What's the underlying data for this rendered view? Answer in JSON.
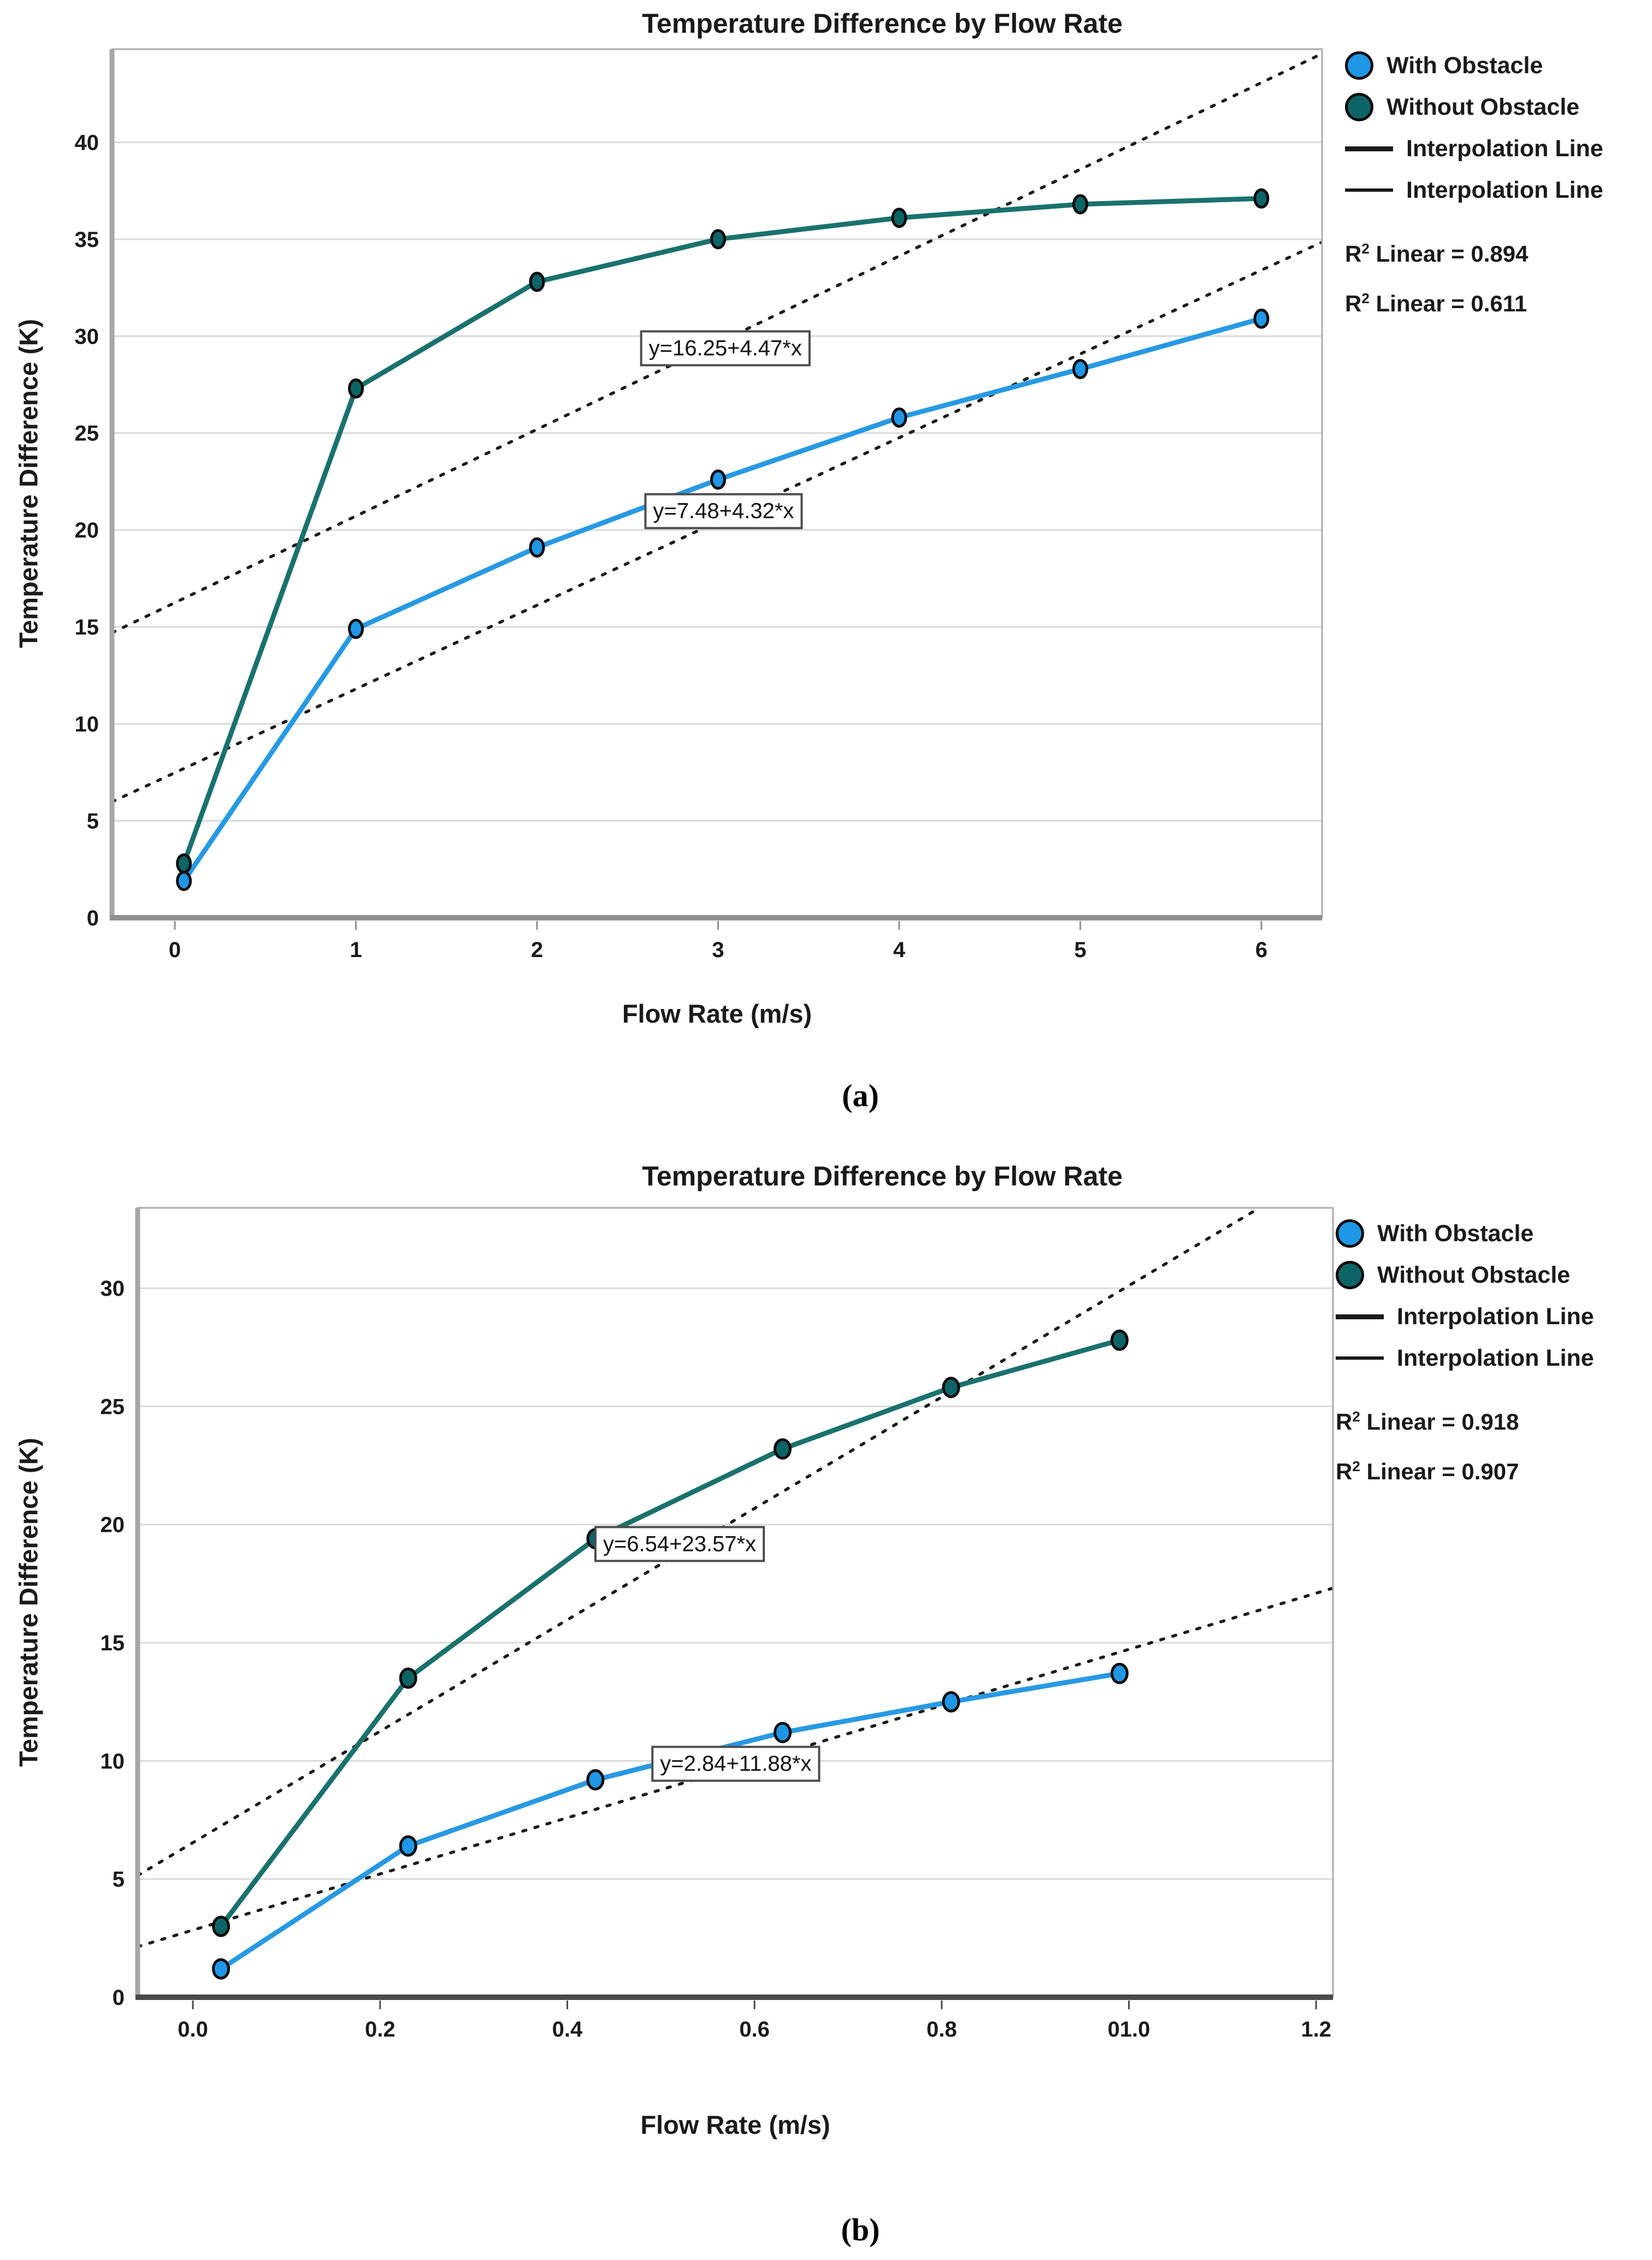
{
  "page": {
    "caption_a": "(a)",
    "caption_b": "(b)"
  },
  "chart_data": [
    {
      "id": "a",
      "type": "line",
      "title": "Temperature Difference by Flow Rate",
      "xlabel": "Flow Rate (m/s)",
      "ylabel": "Temperature Difference (K)",
      "x_ticks": [
        "0",
        "1",
        "2",
        "3",
        "4",
        "5",
        "6"
      ],
      "x_tick_values": [
        0,
        1,
        2,
        3,
        4,
        5,
        6
      ],
      "y_ticks": [
        "0",
        "5",
        "10",
        "15",
        "20",
        "25",
        "30",
        "35",
        "40"
      ],
      "y_tick_values": [
        0,
        5,
        10,
        15,
        20,
        25,
        30,
        35,
        40
      ],
      "xlim": [
        -0.347,
        6.335
      ],
      "ylim": [
        0,
        44.8
      ],
      "grid": "horizontal",
      "legend_position": "top-right",
      "series": [
        {
          "name": "With Obstacle",
          "color": "#2799E4",
          "marker_fill": "#1E97E6",
          "x": [
            0.05,
            1,
            2,
            3,
            4,
            5,
            6
          ],
          "y": [
            1.9,
            14.9,
            19.1,
            22.6,
            25.8,
            28.3,
            30.9
          ]
        },
        {
          "name": "Without Obstacle",
          "color": "#19716D",
          "marker_fill": "#0D6466",
          "x": [
            0.05,
            1,
            2,
            3,
            4,
            5,
            6
          ],
          "y": [
            2.8,
            27.3,
            32.8,
            35.0,
            36.1,
            36.8,
            37.1
          ]
        }
      ],
      "fit_lines": [
        {
          "equation": "y=16.25+4.47*x",
          "intercept": 16.25,
          "slope": 4.47,
          "r2": 0.611,
          "label_center": {
            "x": 3.04,
            "y": 29.4
          }
        },
        {
          "equation": "y=7.48+4.32*x",
          "intercept": 7.48,
          "slope": 4.32,
          "r2": 0.894,
          "label_center": {
            "x": 3.03,
            "y": 21.0
          }
        }
      ],
      "legend_items": [
        "With Obstacle",
        "Without Obstacle",
        "Interpolation Line",
        "Interpolation Line"
      ],
      "r2": [
        {
          "prefix": "R",
          "sup": "2",
          "text": " Linear = 0.894"
        },
        {
          "prefix": "R",
          "sup": "2",
          "text": " Linear = 0.611"
        }
      ],
      "axis_color": "#8F8F8F"
    },
    {
      "id": "b",
      "type": "line",
      "title": "Temperature Difference by Flow Rate",
      "xlabel": "Flow Rate (m/s)",
      "ylabel": "Temperature Difference (K)",
      "x_ticks": [
        "0.0",
        "0.2",
        "0.4",
        "0.6",
        "0.8",
        "01.0",
        "1.2"
      ],
      "x_tick_values": [
        0,
        0.2,
        0.4,
        0.6,
        0.8,
        1.0,
        1.2
      ],
      "y_ticks": [
        "0",
        "5",
        "10",
        "15",
        "20",
        "25",
        "30"
      ],
      "y_tick_values": [
        0,
        5,
        10,
        15,
        20,
        25,
        30
      ],
      "xlim": [
        -0.059,
        1.218
      ],
      "ylim": [
        0,
        33.4
      ],
      "grid": "horizontal",
      "legend_position": "top-right",
      "series": [
        {
          "name": "With Obstacle",
          "color": "#2799E4",
          "marker_fill": "#1E97E6",
          "x": [
            0.03,
            0.23,
            0.43,
            0.63,
            0.81,
            0.99
          ],
          "y": [
            1.2,
            6.4,
            9.2,
            11.2,
            12.5,
            13.7
          ]
        },
        {
          "name": "Without Obstacle",
          "color": "#19716D",
          "marker_fill": "#0D6466",
          "x": [
            0.03,
            0.23,
            0.43,
            0.63,
            0.81,
            0.99
          ],
          "y": [
            3.0,
            13.5,
            19.4,
            23.2,
            25.8,
            27.8
          ]
        }
      ],
      "fit_lines": [
        {
          "equation": "y=6.54+23.57*x",
          "intercept": 6.54,
          "slope": 23.57,
          "r2": 0.907,
          "label_center": {
            "x": 0.52,
            "y": 19.2
          }
        },
        {
          "equation": "y=2.84+11.88*x",
          "intercept": 2.84,
          "slope": 11.88,
          "r2": 0.918,
          "label_center": {
            "x": 0.58,
            "y": 9.9
          }
        }
      ],
      "legend_items": [
        "With Obstacle",
        "Without Obstacle",
        "Interpolation Line",
        "Interpolation Line"
      ],
      "r2": [
        {
          "prefix": "R",
          "sup": "2",
          "text": " Linear = 0.918"
        },
        {
          "prefix": "R",
          "sup": "2",
          "text": " Linear = 0.907"
        }
      ],
      "axis_color": "#4A4A4A"
    }
  ]
}
